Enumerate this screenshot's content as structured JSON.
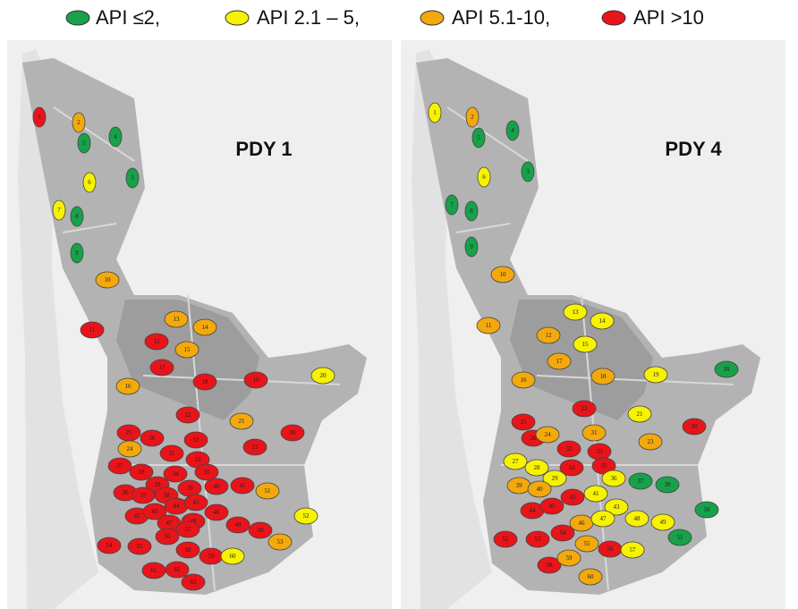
{
  "legend": [
    {
      "label": "API ≤2,",
      "color": "#17a14a"
    },
    {
      "label": "API 2.1 – 5,",
      "color": "#f6f200"
    },
    {
      "label": "API 5.1-10,",
      "color": "#f3a90c"
    },
    {
      "label": "API >10",
      "color": "#e8141a"
    }
  ],
  "panels": [
    {
      "title": "PDY 1",
      "markers": [
        {
          "label": "1",
          "level": 3
        },
        {
          "label": "2",
          "level": 2
        },
        {
          "label": "5",
          "level": 0
        },
        {
          "label": "4",
          "level": 0
        },
        {
          "label": "3",
          "level": 0
        },
        {
          "label": "6",
          "level": 1
        },
        {
          "label": "7",
          "level": 1
        },
        {
          "label": "8",
          "level": 0
        },
        {
          "label": "9",
          "level": 0
        },
        {
          "label": "10",
          "level": 2
        },
        {
          "label": "11",
          "level": 3
        },
        {
          "label": "13",
          "level": 2
        },
        {
          "label": "14",
          "level": 2
        },
        {
          "label": "12",
          "level": 3
        },
        {
          "label": "15",
          "level": 2
        },
        {
          "label": "17",
          "level": 3
        },
        {
          "label": "16",
          "level": 2
        },
        {
          "label": "18",
          "level": 3
        },
        {
          "label": "19",
          "level": 3
        },
        {
          "label": "20",
          "level": 1
        },
        {
          "label": "22",
          "level": 3
        },
        {
          "label": "21",
          "level": 2
        },
        {
          "label": "23",
          "level": 3
        },
        {
          "label": "30",
          "level": 3
        },
        {
          "label": "25",
          "level": 3
        },
        {
          "label": "26",
          "level": 3
        },
        {
          "label": "24",
          "level": 2
        },
        {
          "label": "31",
          "level": 3
        },
        {
          "label": "32",
          "level": 3
        },
        {
          "label": "27",
          "level": 3
        },
        {
          "label": "28",
          "level": 3
        },
        {
          "label": "33",
          "level": 3
        },
        {
          "label": "29",
          "level": 3
        },
        {
          "label": "34",
          "level": 3
        },
        {
          "label": "35",
          "level": 3
        },
        {
          "label": "36",
          "level": 3
        },
        {
          "label": "37",
          "level": 3
        },
        {
          "label": "38",
          "level": 3
        },
        {
          "label": "39",
          "level": 3
        },
        {
          "label": "40",
          "level": 3
        },
        {
          "label": "41",
          "level": 3
        },
        {
          "label": "51",
          "level": 2
        },
        {
          "label": "42",
          "level": 3
        },
        {
          "label": "43",
          "level": 3
        },
        {
          "label": "44",
          "level": 3
        },
        {
          "label": "45",
          "level": 3
        },
        {
          "label": "46",
          "level": 3
        },
        {
          "label": "47",
          "level": 3
        },
        {
          "label": "48",
          "level": 3
        },
        {
          "label": "49",
          "level": 3
        },
        {
          "label": "50",
          "level": 3
        },
        {
          "label": "52",
          "level": 1
        },
        {
          "label": "53",
          "level": 2
        },
        {
          "label": "54",
          "level": 3
        },
        {
          "label": "55",
          "level": 3
        },
        {
          "label": "56",
          "level": 3
        },
        {
          "label": "57",
          "level": 3
        },
        {
          "label": "58",
          "level": 3
        },
        {
          "label": "59",
          "level": 3
        },
        {
          "label": "60",
          "level": 1
        },
        {
          "label": "61",
          "level": 3
        },
        {
          "label": "62",
          "level": 3
        },
        {
          "label": "63",
          "level": 3
        }
      ]
    },
    {
      "title": "PDY 4",
      "markers": [
        {
          "label": "1",
          "level": 1
        },
        {
          "label": "2",
          "level": 2
        },
        {
          "label": "5",
          "level": 0
        },
        {
          "label": "4",
          "level": 0
        },
        {
          "label": "3",
          "level": 0
        },
        {
          "label": "6",
          "level": 1
        },
        {
          "label": "7",
          "level": 0
        },
        {
          "label": "8",
          "level": 0
        },
        {
          "label": "9",
          "level": 0
        },
        {
          "label": "10",
          "level": 2
        },
        {
          "label": "11",
          "level": 2
        },
        {
          "label": "13",
          "level": 1
        },
        {
          "label": "14",
          "level": 1
        },
        {
          "label": "12",
          "level": 2
        },
        {
          "label": "15",
          "level": 1
        },
        {
          "label": "17",
          "level": 2
        },
        {
          "label": "16",
          "level": 2
        },
        {
          "label": "18",
          "level": 2
        },
        {
          "label": "19",
          "level": 1
        },
        {
          "label": "20",
          "level": 0
        },
        {
          "label": "22",
          "level": 3
        },
        {
          "label": "21",
          "level": 1
        },
        {
          "label": "23",
          "level": 2
        },
        {
          "label": "30",
          "level": 3
        },
        {
          "label": "25",
          "level": 3
        },
        {
          "label": "26",
          "level": 3
        },
        {
          "label": "24",
          "level": 2
        },
        {
          "label": "31",
          "level": 2
        },
        {
          "label": "32",
          "level": 3
        },
        {
          "label": "27",
          "level": 1
        },
        {
          "label": "28",
          "level": 1
        },
        {
          "label": "33",
          "level": 3
        },
        {
          "label": "29",
          "level": 1
        },
        {
          "label": "34",
          "level": 3
        },
        {
          "label": "35",
          "level": 3
        },
        {
          "label": "36",
          "level": 1
        },
        {
          "label": "37",
          "level": 0
        },
        {
          "label": "38",
          "level": 0
        },
        {
          "label": "39",
          "level": 2
        },
        {
          "label": "40",
          "level": 2
        },
        {
          "label": "41",
          "level": 1
        },
        {
          "label": "42",
          "level": 3
        },
        {
          "label": "43",
          "level": 1
        },
        {
          "label": "44",
          "level": 3
        },
        {
          "label": "45",
          "level": 3
        },
        {
          "label": "46",
          "level": 2
        },
        {
          "label": "47",
          "level": 1
        },
        {
          "label": "48",
          "level": 1
        },
        {
          "label": "49",
          "level": 1
        },
        {
          "label": "50",
          "level": 0
        },
        {
          "label": "51",
          "level": 0
        },
        {
          "label": "52",
          "level": 3
        },
        {
          "label": "53",
          "level": 3
        },
        {
          "label": "54",
          "level": 3
        },
        {
          "label": "55",
          "level": 2
        },
        {
          "label": "56",
          "level": 3
        },
        {
          "label": "57",
          "level": 1
        },
        {
          "label": "58",
          "level": 3
        },
        {
          "label": "59",
          "level": 2
        },
        {
          "label": "60",
          "level": 2
        }
      ]
    }
  ]
}
